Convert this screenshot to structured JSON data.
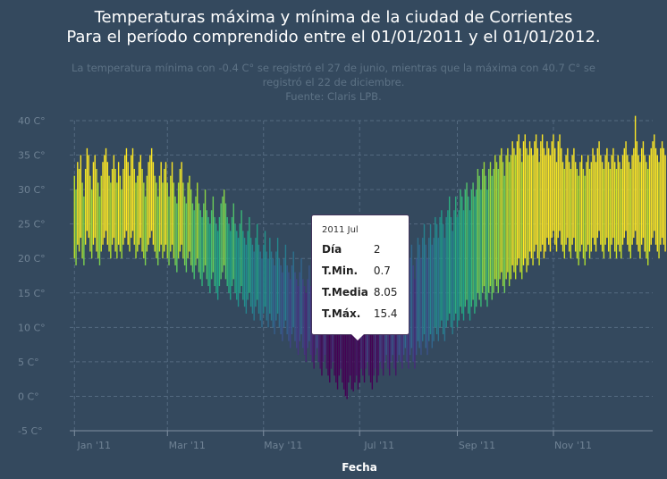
{
  "chart_data": {
    "type": "bar",
    "title": [
      "Temperaturas máxima y mínima de la ciudad de Corrientes",
      "Para el período comprendido entre el 01/01/2011 y el 01/01/2012."
    ],
    "subtitle": [
      "La temperatura mínima con -0.4 C° se registró el 27 de junio, mientras que la máxima con 40.7 C° se",
      "registró el 22 de diciembre.",
      "Fuente: Claris LPB."
    ],
    "xlabel": "Fecha",
    "ylabel": "",
    "ylim": [
      -5,
      40
    ],
    "yticks": [
      -5,
      0,
      5,
      10,
      15,
      20,
      25,
      30,
      35,
      40
    ],
    "ytick_suffix": " C°",
    "xlim": [
      "2010-12-29",
      "2012-01-03"
    ],
    "xticks": [
      {
        "date": "2011-01-01",
        "label": "Jan '11"
      },
      {
        "date": "2011-03-01",
        "label": "Mar '11"
      },
      {
        "date": "2011-05-01",
        "label": "May '11"
      },
      {
        "date": "2011-07-01",
        "label": "Jul '11"
      },
      {
        "date": "2011-09-01",
        "label": "Sep '11"
      },
      {
        "date": "2011-11-01",
        "label": "Nov '11"
      }
    ],
    "grid": true,
    "color_encoding": "viridis",
    "start_date": "2011-01-01",
    "series": [
      {
        "name": "T.Min.",
        "values": [
          20,
          19,
          22,
          21,
          23,
          20,
          19,
          22,
          24,
          23,
          21,
          20,
          22,
          23,
          21,
          20,
          19,
          21,
          22,
          23,
          24,
          22,
          21,
          20,
          22,
          23,
          21,
          20,
          22,
          21,
          20,
          22,
          23,
          24,
          22,
          21,
          23,
          24,
          22,
          20,
          21,
          22,
          23,
          21,
          20,
          19,
          21,
          22,
          23,
          24,
          22,
          21,
          20,
          19,
          21,
          22,
          20,
          21,
          22,
          20,
          19,
          21,
          22,
          20,
          19,
          18,
          20,
          21,
          22,
          20,
          19,
          18,
          20,
          21,
          19,
          18,
          17,
          19,
          20,
          18,
          17,
          16,
          18,
          19,
          17,
          16,
          15,
          17,
          18,
          16,
          15,
          14,
          16,
          17,
          18,
          19,
          17,
          16,
          15,
          14,
          16,
          17,
          15,
          14,
          13,
          15,
          16,
          14,
          13,
          12,
          14,
          15,
          13,
          12,
          11,
          13,
          14,
          12,
          11,
          10,
          12,
          13,
          11,
          10,
          12,
          11,
          10,
          9,
          11,
          12,
          10,
          9,
          8,
          10,
          11,
          9,
          8,
          7,
          9,
          10,
          8,
          7,
          6,
          8,
          9,
          7,
          6,
          5,
          7,
          8,
          6,
          5,
          4,
          6,
          7,
          5,
          4,
          3,
          5,
          6,
          4,
          3,
          2,
          4,
          5,
          3,
          2,
          1,
          3,
          4,
          2,
          1,
          0,
          -0.4,
          2,
          3,
          1,
          0.7,
          2,
          3,
          1,
          2,
          4,
          3,
          2,
          4,
          5,
          3,
          2,
          1,
          3,
          4,
          2,
          3,
          5,
          4,
          3,
          5,
          6,
          4,
          3,
          5,
          6,
          4,
          3,
          5,
          6,
          5,
          4,
          6,
          7,
          5,
          4,
          6,
          7,
          5,
          4,
          6,
          8,
          7,
          6,
          8,
          9,
          7,
          6,
          8,
          9,
          7,
          8,
          10,
          9,
          8,
          10,
          11,
          9,
          8,
          10,
          11,
          12,
          10,
          9,
          11,
          12,
          10,
          11,
          13,
          12,
          11,
          13,
          14,
          12,
          11,
          13,
          14,
          12,
          13,
          15,
          14,
          13,
          15,
          16,
          14,
          13,
          15,
          16,
          14,
          15,
          17,
          16,
          15,
          17,
          18,
          16,
          15,
          17,
          18,
          16,
          17,
          19,
          18,
          17,
          19,
          20,
          18,
          17,
          19,
          20,
          18,
          19,
          21,
          20,
          19,
          21,
          22,
          20,
          19,
          21,
          22,
          20,
          21,
          23,
          22,
          21,
          23,
          24,
          22,
          21,
          23,
          24,
          22,
          21,
          20,
          22,
          23,
          21,
          20,
          22,
          23,
          21,
          20,
          19,
          21,
          22,
          20,
          19,
          21,
          22,
          20,
          21,
          23,
          22,
          21,
          23,
          24,
          22,
          21,
          20,
          22,
          23,
          21,
          20,
          22,
          23,
          21,
          20,
          22,
          21,
          20,
          22,
          23,
          24,
          22,
          21,
          20,
          22,
          23,
          24,
          22,
          21,
          20,
          22,
          23,
          21,
          20,
          19,
          21,
          22,
          23,
          24,
          22,
          21,
          20,
          22,
          23,
          22,
          21
        ]
      },
      {
        "name": "T.Máx.",
        "values": [
          32,
          30,
          34,
          33,
          35,
          31,
          29,
          33,
          36,
          35,
          32,
          30,
          34,
          35,
          33,
          31,
          29,
          32,
          34,
          35,
          36,
          34,
          32,
          31,
          33,
          35,
          33,
          31,
          34,
          32,
          30,
          33,
          35,
          36,
          34,
          32,
          35,
          36,
          33,
          31,
          32,
          34,
          35,
          33,
          31,
          29,
          32,
          34,
          35,
          36,
          34,
          32,
          31,
          29,
          32,
          34,
          31,
          33,
          34,
          31,
          29,
          32,
          34,
          31,
          29,
          28,
          31,
          33,
          34,
          31,
          29,
          28,
          31,
          32,
          30,
          28,
          27,
          29,
          31,
          28,
          27,
          26,
          28,
          30,
          27,
          26,
          25,
          27,
          29,
          26,
          25,
          24,
          26,
          28,
          29,
          30,
          28,
          26,
          25,
          24,
          26,
          28,
          25,
          24,
          23,
          25,
          27,
          24,
          23,
          22,
          24,
          26,
          23,
          22,
          21,
          23,
          25,
          22,
          21,
          20,
          22,
          24,
          21,
          20,
          23,
          21,
          20,
          19,
          21,
          23,
          20,
          19,
          18,
          20,
          22,
          19,
          18,
          17,
          19,
          21,
          18,
          17,
          16,
          18,
          20,
          17,
          16,
          15,
          17,
          19,
          16,
          15,
          14,
          16,
          18,
          15,
          14,
          13,
          15,
          17,
          14,
          13,
          12,
          14,
          16,
          13,
          12,
          11,
          13,
          15,
          12,
          11,
          10,
          9,
          12,
          14,
          11,
          15.4,
          13,
          15,
          12,
          13,
          16,
          15,
          13,
          16,
          18,
          15,
          13,
          12,
          15,
          17,
          14,
          15,
          18,
          17,
          15,
          18,
          20,
          17,
          15,
          18,
          20,
          17,
          15,
          18,
          20,
          19,
          17,
          20,
          22,
          19,
          17,
          20,
          22,
          19,
          17,
          20,
          23,
          22,
          20,
          23,
          25,
          22,
          20,
          23,
          25,
          22,
          23,
          26,
          25,
          23,
          26,
          27,
          25,
          23,
          26,
          27,
          29,
          26,
          24,
          27,
          29,
          26,
          27,
          30,
          29,
          27,
          30,
          31,
          29,
          27,
          30,
          31,
          29,
          30,
          33,
          32,
          30,
          33,
          34,
          32,
          30,
          33,
          34,
          32,
          33,
          35,
          34,
          33,
          35,
          36,
          34,
          32,
          35,
          36,
          34,
          35,
          37,
          36,
          35,
          37,
          38,
          36,
          34,
          37,
          38,
          36,
          35,
          37,
          36,
          35,
          37,
          38,
          36,
          34,
          37,
          38,
          36,
          35,
          37,
          36,
          35,
          37,
          38,
          36,
          34,
          37,
          38,
          36,
          34,
          33,
          35,
          36,
          34,
          33,
          35,
          36,
          34,
          33,
          32,
          34,
          35,
          33,
          32,
          34,
          35,
          33,
          34,
          36,
          35,
          34,
          36,
          37,
          35,
          34,
          33,
          35,
          36,
          34,
          33,
          35,
          36,
          34,
          33,
          35,
          34,
          33,
          35,
          36,
          37,
          35,
          34,
          33,
          35,
          36,
          40.7,
          37,
          35,
          34,
          36,
          37,
          35,
          34,
          33,
          35,
          36,
          37,
          38,
          36,
          35,
          34,
          36,
          37,
          36,
          35
        ]
      }
    ],
    "tooltip": {
      "header": "2011 Jul",
      "rows": [
        {
          "key": "Día",
          "value": "2"
        },
        {
          "key": "T.Min.",
          "value": "0.7"
        },
        {
          "key": "T.Media",
          "value": "8.05"
        },
        {
          "key": "T.Máx.",
          "value": "15.4"
        }
      ]
    }
  }
}
